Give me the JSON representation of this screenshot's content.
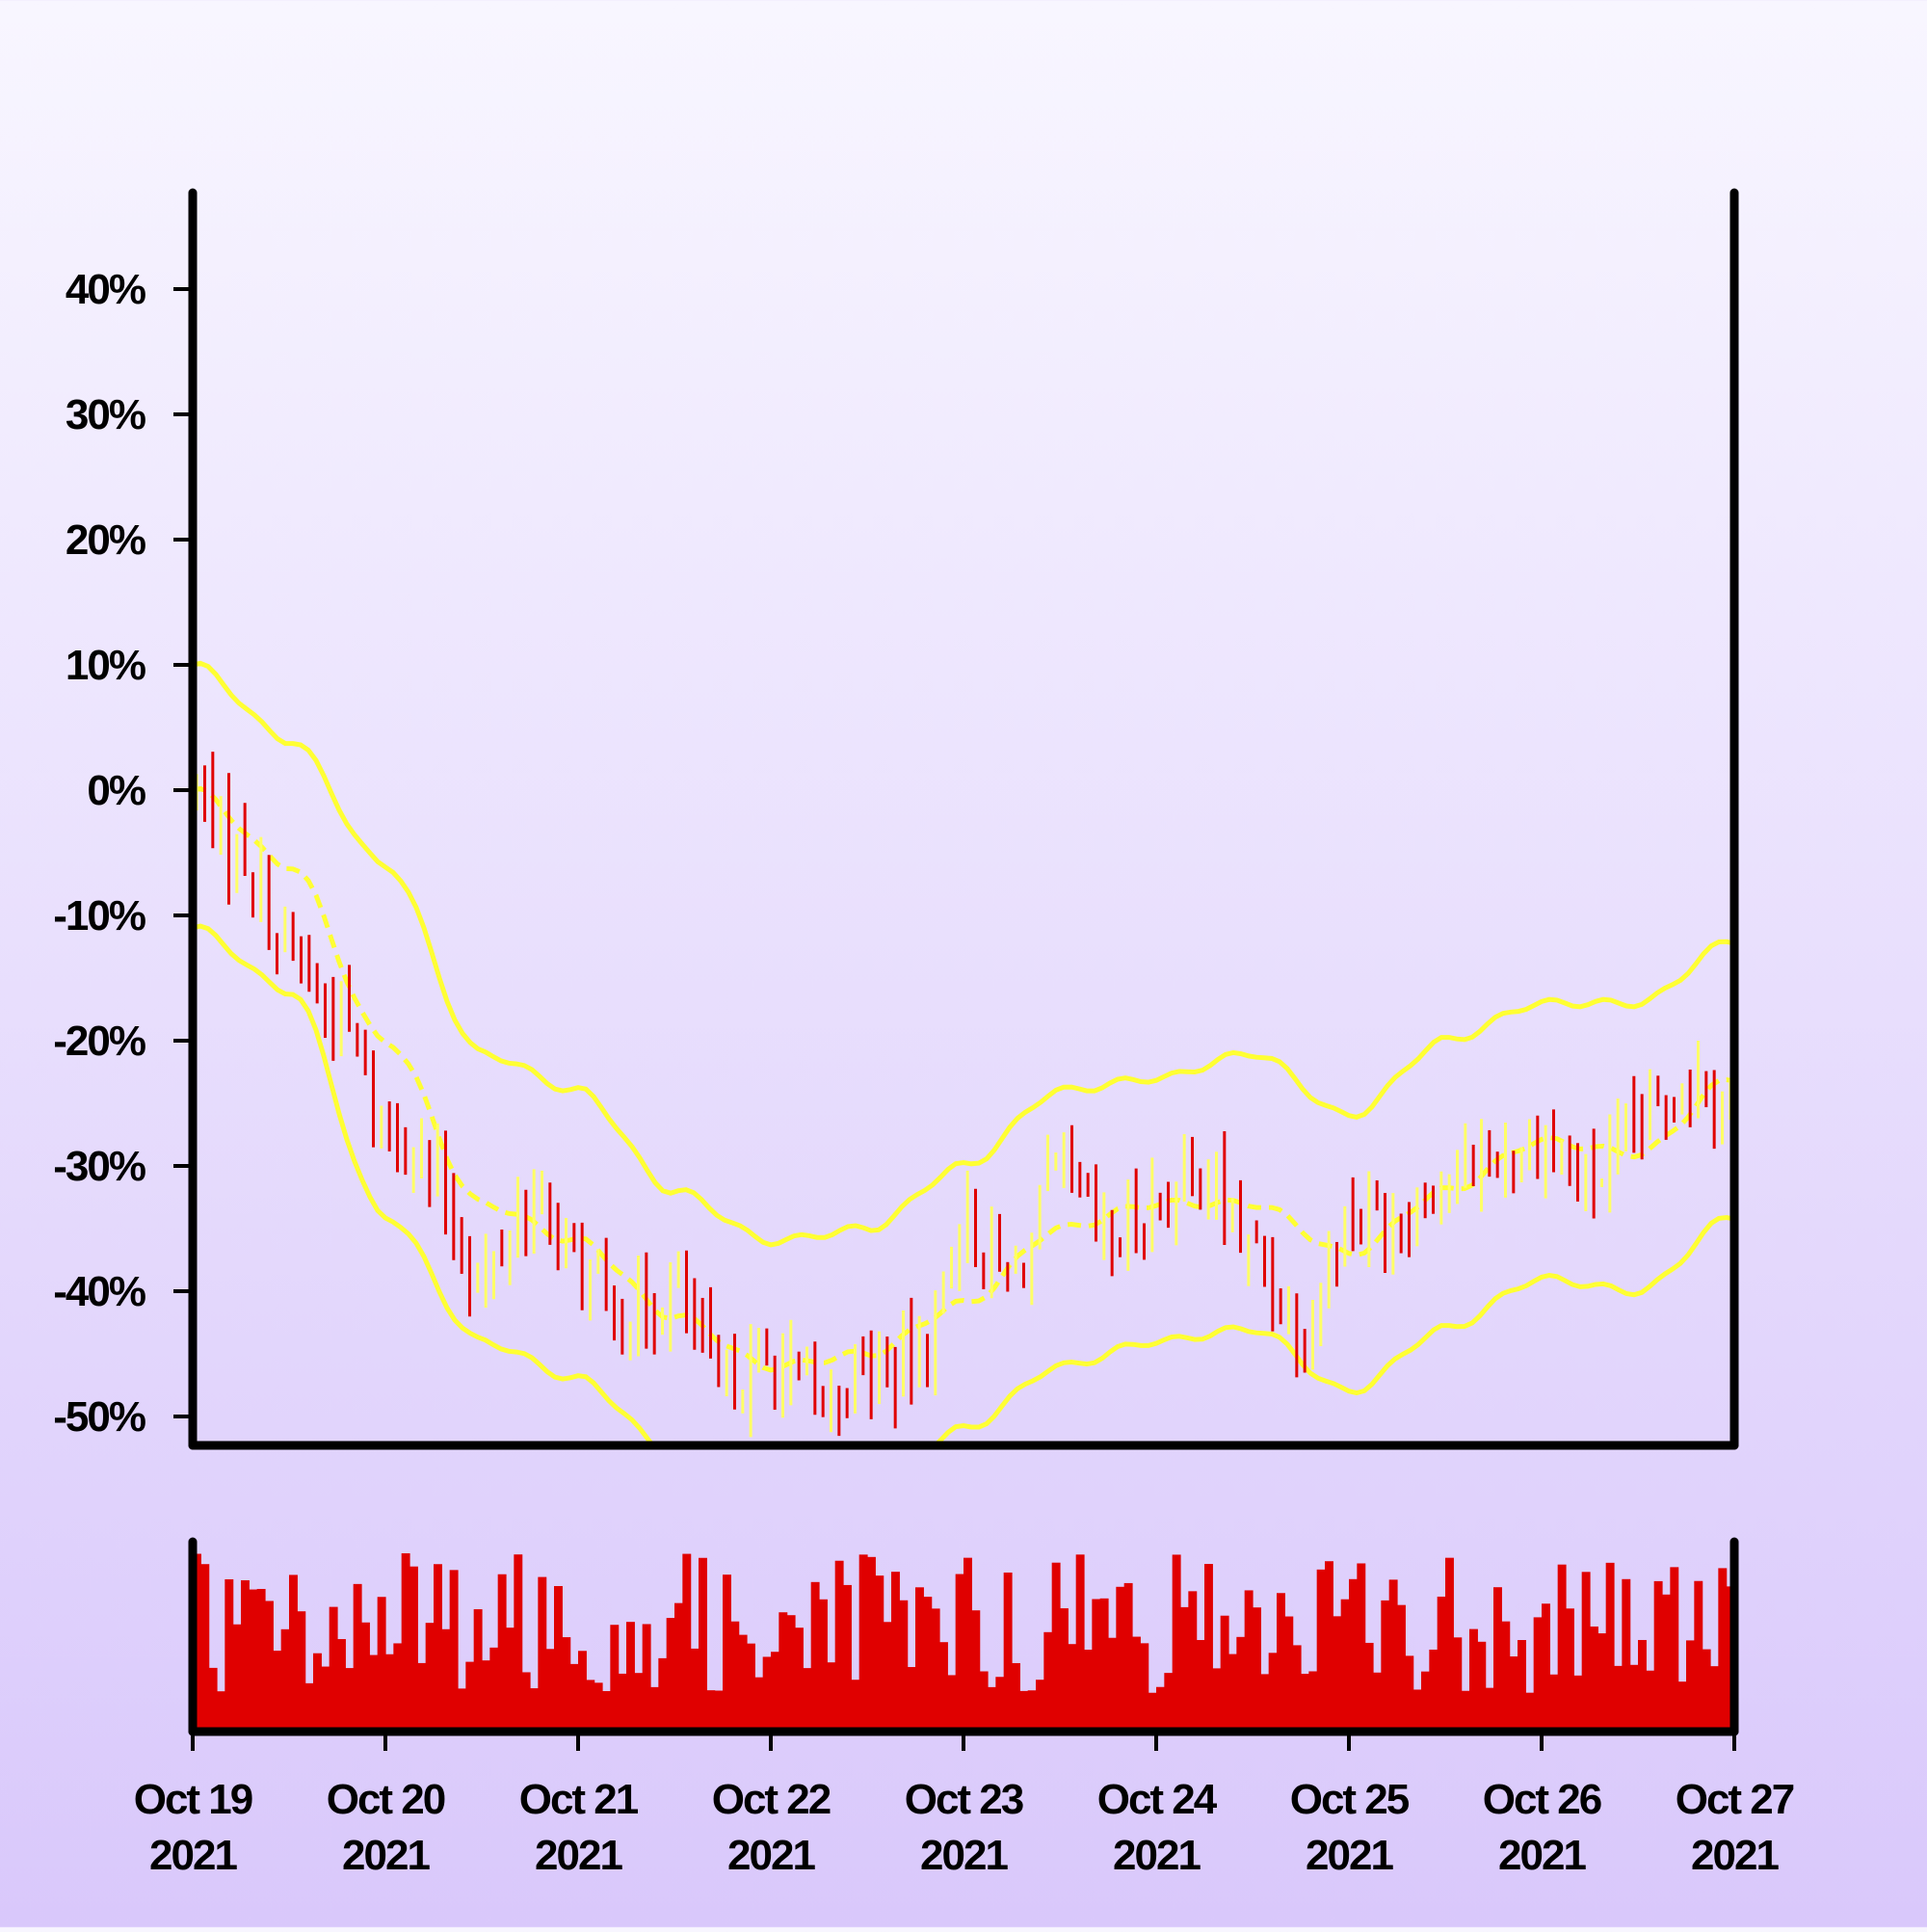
{
  "colors": {
    "bg_top": "#f8f6ff",
    "bg_bottom": "#d9c8fb",
    "up": "#ffff66",
    "down": "#e00000",
    "band": "#ffff33",
    "axis": "#000000",
    "volume": "#e00000"
  },
  "chart_data": {
    "type": "candlestick-ohlc",
    "title": "",
    "xlabel": "",
    "ylabel": "",
    "x_range": [
      "2021-10-19",
      "2021-10-27"
    ],
    "ylim": [
      -52,
      48
    ],
    "y_ticks": [
      40,
      30,
      20,
      10,
      0,
      -10,
      -20,
      -30,
      -40,
      -50
    ],
    "y_tick_labels": [
      "40%",
      "30%",
      "20%",
      "10%",
      "0%",
      "-10%",
      "-20%",
      "-30%",
      "-40%",
      "-50%"
    ],
    "x_tick_labels": [
      {
        "date": "2021-10-19",
        "line1": "Oct 19",
        "line2": "2021"
      },
      {
        "date": "2021-10-20",
        "line1": "Oct 20",
        "line2": "2021"
      },
      {
        "date": "2021-10-21",
        "line1": "Oct 21",
        "line2": "2021"
      },
      {
        "date": "2021-10-22",
        "line1": "Oct 22",
        "line2": "2021"
      },
      {
        "date": "2021-10-23",
        "line1": "Oct 23",
        "line2": "2021"
      },
      {
        "date": "2021-10-24",
        "line1": "Oct 24",
        "line2": "2021"
      },
      {
        "date": "2021-10-25",
        "line1": "Oct 25",
        "line2": "2021"
      },
      {
        "date": "2021-10-26",
        "line1": "Oct 26",
        "line2": "2021"
      },
      {
        "date": "2021-10-27",
        "line1": "Oct 27",
        "line2": "2021"
      }
    ],
    "bar_interval_hours": 1,
    "close_anchors": [
      {
        "t": "2021-10-19 00:00",
        "v": 0
      },
      {
        "t": "2021-10-19 06:00",
        "v": -5
      },
      {
        "t": "2021-10-19 12:00",
        "v": -13
      },
      {
        "t": "2021-10-19 18:00",
        "v": -18
      },
      {
        "t": "2021-10-20 00:00",
        "v": -26
      },
      {
        "t": "2021-10-20 06:00",
        "v": -31
      },
      {
        "t": "2021-10-20 12:00",
        "v": -39
      },
      {
        "t": "2021-10-20 18:00",
        "v": -33
      },
      {
        "t": "2021-10-21 00:00",
        "v": -38
      },
      {
        "t": "2021-10-21 06:00",
        "v": -42
      },
      {
        "t": "2021-10-21 12:00",
        "v": -40
      },
      {
        "t": "2021-10-21 18:00",
        "v": -47
      },
      {
        "t": "2021-10-22 00:00",
        "v": -46
      },
      {
        "t": "2021-10-22 06:00",
        "v": -49
      },
      {
        "t": "2021-10-22 12:00",
        "v": -46
      },
      {
        "t": "2021-10-22 18:00",
        "v": -46
      },
      {
        "t": "2021-10-23 00:00",
        "v": -35
      },
      {
        "t": "2021-10-23 06:00",
        "v": -39
      },
      {
        "t": "2021-10-23 12:00",
        "v": -31
      },
      {
        "t": "2021-10-23 18:00",
        "v": -36
      },
      {
        "t": "2021-10-24 00:00",
        "v": -33
      },
      {
        "t": "2021-10-24 06:00",
        "v": -31
      },
      {
        "t": "2021-10-24 12:00",
        "v": -37
      },
      {
        "t": "2021-10-24 18:00",
        "v": -43
      },
      {
        "t": "2021-10-25 00:00",
        "v": -34
      },
      {
        "t": "2021-10-25 06:00",
        "v": -34
      },
      {
        "t": "2021-10-25 12:00",
        "v": -31
      },
      {
        "t": "2021-10-25 18:00",
        "v": -29
      },
      {
        "t": "2021-10-26 00:00",
        "v": -28
      },
      {
        "t": "2021-10-26 06:00",
        "v": -31
      },
      {
        "t": "2021-10-26 12:00",
        "v": -27
      },
      {
        "t": "2021-10-26 18:00",
        "v": -23
      },
      {
        "t": "2021-10-27 00:00",
        "v": -24
      }
    ],
    "bollinger_middle": [
      {
        "t": "2021-10-19 00:00",
        "v": 0
      },
      {
        "t": "2021-10-19 12:00",
        "v": -6
      },
      {
        "t": "2021-10-20 00:00",
        "v": -20
      },
      {
        "t": "2021-10-20 12:00",
        "v": -33
      },
      {
        "t": "2021-10-21 00:00",
        "v": -36
      },
      {
        "t": "2021-10-21 12:00",
        "v": -42
      },
      {
        "t": "2021-10-22 00:00",
        "v": -46
      },
      {
        "t": "2021-10-22 12:00",
        "v": -45
      },
      {
        "t": "2021-10-23 00:00",
        "v": -41
      },
      {
        "t": "2021-10-23 12:00",
        "v": -35
      },
      {
        "t": "2021-10-24 00:00",
        "v": -33
      },
      {
        "t": "2021-10-24 12:00",
        "v": -33
      },
      {
        "t": "2021-10-25 00:00",
        "v": -37
      },
      {
        "t": "2021-10-25 12:00",
        "v": -32
      },
      {
        "t": "2021-10-26 00:00",
        "v": -28
      },
      {
        "t": "2021-10-26 12:00",
        "v": -29
      },
      {
        "t": "2021-10-27 00:00",
        "v": -23
      }
    ],
    "bollinger_upper": [
      {
        "t": "2021-10-19 00:00",
        "v": 10
      },
      {
        "t": "2021-10-19 12:00",
        "v": 4
      },
      {
        "t": "2021-10-20 00:00",
        "v": -6
      },
      {
        "t": "2021-10-20 12:00",
        "v": -21
      },
      {
        "t": "2021-10-21 00:00",
        "v": -24
      },
      {
        "t": "2021-10-21 12:00",
        "v": -32
      },
      {
        "t": "2021-10-22 00:00",
        "v": -36
      },
      {
        "t": "2021-10-22 12:00",
        "v": -35
      },
      {
        "t": "2021-10-23 00:00",
        "v": -30
      },
      {
        "t": "2021-10-23 12:00",
        "v": -24
      },
      {
        "t": "2021-10-24 00:00",
        "v": -23
      },
      {
        "t": "2021-10-24 12:00",
        "v": -21
      },
      {
        "t": "2021-10-25 00:00",
        "v": -26
      },
      {
        "t": "2021-10-25 12:00",
        "v": -20
      },
      {
        "t": "2021-10-26 00:00",
        "v": -17
      },
      {
        "t": "2021-10-26 12:00",
        "v": -17
      },
      {
        "t": "2021-10-27 00:00",
        "v": -12
      }
    ],
    "bollinger_lower": [
      {
        "t": "2021-10-19 00:00",
        "v": -11
      },
      {
        "t": "2021-10-19 12:00",
        "v": -16
      },
      {
        "t": "2021-10-20 00:00",
        "v": -34
      },
      {
        "t": "2021-10-20 12:00",
        "v": -44
      },
      {
        "t": "2021-10-21 00:00",
        "v": -47
      },
      {
        "t": "2021-10-21 12:00",
        "v": -53
      },
      {
        "t": "2021-10-22 00:00",
        "v": -56
      },
      {
        "t": "2021-10-22 12:00",
        "v": -56
      },
      {
        "t": "2021-10-23 00:00",
        "v": -51
      },
      {
        "t": "2021-10-23 12:00",
        "v": -46
      },
      {
        "t": "2021-10-24 00:00",
        "v": -44
      },
      {
        "t": "2021-10-24 12:00",
        "v": -43
      },
      {
        "t": "2021-10-25 00:00",
        "v": -48
      },
      {
        "t": "2021-10-25 12:00",
        "v": -43
      },
      {
        "t": "2021-10-26 00:00",
        "v": -39
      },
      {
        "t": "2021-10-26 12:00",
        "v": -40
      },
      {
        "t": "2021-10-27 00:00",
        "v": -34
      }
    ],
    "volume": {
      "relative_range": [
        0,
        1
      ],
      "note_values": "per-bar volumes, relative to panel max, one per hourly bar",
      "values_seed": 7
    }
  }
}
